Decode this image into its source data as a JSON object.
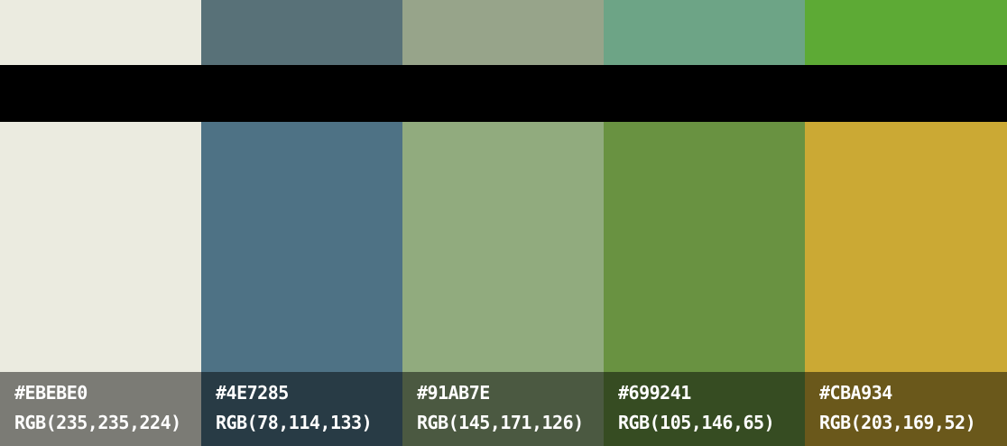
{
  "top_colors": [
    "#EBEBE0",
    "#587178",
    "#97A48A",
    "#6DA486",
    "#5DAA35"
  ],
  "divider_color": "#000000",
  "swatches": [
    {
      "hex": "#EBEBE0",
      "rgb": "RGB(235,235,224)",
      "color": "#EBEBE0"
    },
    {
      "hex": "#4E7285",
      "rgb": "RGB(78,114,133)",
      "color": "#4E7285"
    },
    {
      "hex": "#91AB7E",
      "rgb": "RGB(145,171,126)",
      "color": "#91AB7E"
    },
    {
      "hex": "#699241",
      "rgb": "RGB(105,146,65)",
      "color": "#699241"
    },
    {
      "hex": "#CBA934",
      "rgb": "RGB(203,169,52)",
      "color": "#CBA934"
    }
  ]
}
